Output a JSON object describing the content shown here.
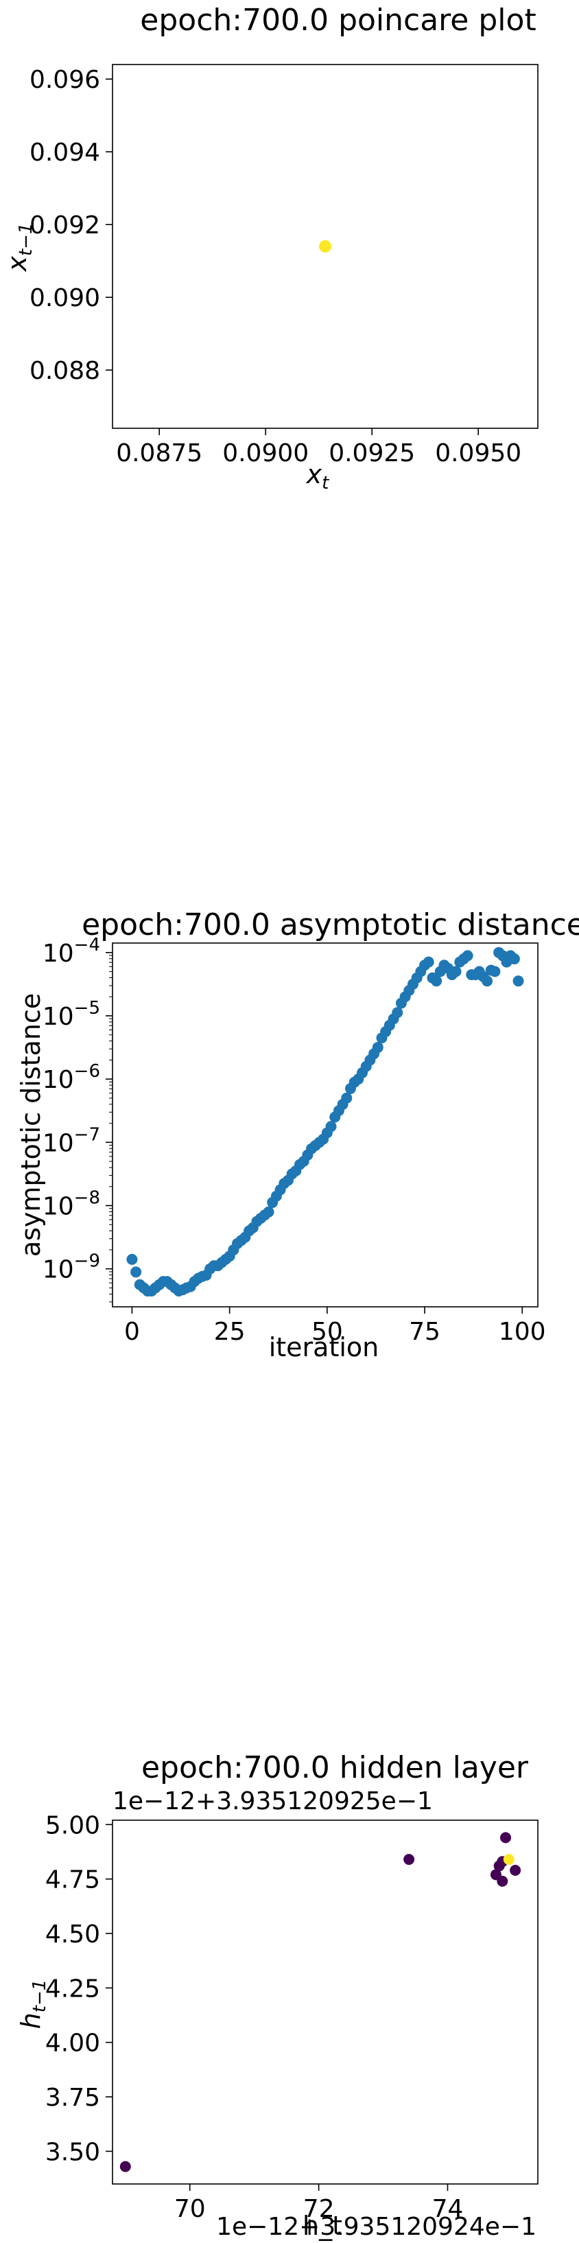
{
  "chart_data": [
    {
      "type": "scatter",
      "title": "epoch:700.0 poincare plot",
      "xlabel": "x",
      "xlabel_sub": "t",
      "ylabel": "x",
      "ylabel_sub": "t−1",
      "xlim": [
        0.0864,
        0.0964
      ],
      "ylim": [
        0.0864,
        0.0964
      ],
      "xticks": [
        0.0875,
        0.09,
        0.0925,
        0.095
      ],
      "xtick_labels": [
        "0.0875",
        "0.0900",
        "0.0925",
        "0.0950"
      ],
      "yticks": [
        0.088,
        0.09,
        0.092,
        0.094,
        0.096
      ],
      "ytick_labels": [
        "0.088",
        "0.090",
        "0.092",
        "0.094",
        "0.096"
      ],
      "points": [
        {
          "x": 0.0914,
          "y": 0.0914
        }
      ],
      "point_color": "#fde725"
    },
    {
      "type": "scatter",
      "title": "epoch:700.0 asymptotic distance",
      "xlabel": "iteration",
      "ylabel": "asymptotic distance",
      "yscale": "log",
      "xlim": [
        -5,
        104
      ],
      "ylim_log10": [
        -9.6,
        -3.85
      ],
      "xticks": [
        0,
        25,
        50,
        75,
        100
      ],
      "xtick_labels": [
        "0",
        "25",
        "50",
        "75",
        "100"
      ],
      "yticks_log10": [
        -9,
        -8,
        -7,
        -6,
        -5,
        -4
      ],
      "ytick_labels": [
        {
          "base": "10",
          "exp": "−9"
        },
        {
          "base": "10",
          "exp": "−8"
        },
        {
          "base": "10",
          "exp": "−7"
        },
        {
          "base": "10",
          "exp": "−6"
        },
        {
          "base": "10",
          "exp": "−5"
        },
        {
          "base": "10",
          "exp": "−4"
        }
      ],
      "point_color": "#1f77b4",
      "x": [
        0,
        1,
        2,
        3,
        4,
        5,
        6,
        7,
        8,
        9,
        10,
        11,
        12,
        13,
        14,
        15,
        16,
        17,
        18,
        19,
        20,
        21,
        22,
        23,
        24,
        25,
        26,
        27,
        28,
        29,
        30,
        31,
        32,
        33,
        34,
        35,
        36,
        37,
        38,
        39,
        40,
        41,
        42,
        43,
        44,
        45,
        46,
        47,
        48,
        49,
        50,
        51,
        52,
        53,
        54,
        55,
        56,
        57,
        58,
        59,
        60,
        61,
        62,
        63,
        64,
        65,
        66,
        67,
        68,
        69,
        70,
        71,
        72,
        73,
        74,
        75,
        76,
        77,
        78,
        79,
        80,
        81,
        82,
        83,
        84,
        85,
        86,
        87,
        88,
        89,
        90,
        91,
        92,
        93,
        94,
        95,
        96,
        97,
        98,
        99
      ],
      "y_log10": [
        -8.85,
        -9.05,
        -9.25,
        -9.3,
        -9.35,
        -9.35,
        -9.3,
        -9.25,
        -9.2,
        -9.2,
        -9.25,
        -9.3,
        -9.35,
        -9.33,
        -9.3,
        -9.28,
        -9.2,
        -9.15,
        -9.12,
        -9.1,
        -9.0,
        -8.95,
        -8.95,
        -8.9,
        -8.85,
        -8.8,
        -8.7,
        -8.6,
        -8.55,
        -8.5,
        -8.4,
        -8.35,
        -8.25,
        -8.2,
        -8.15,
        -8.1,
        -7.95,
        -7.85,
        -7.75,
        -7.65,
        -7.6,
        -7.5,
        -7.45,
        -7.35,
        -7.3,
        -7.2,
        -7.1,
        -7.05,
        -7.0,
        -6.95,
        -6.85,
        -6.75,
        -6.6,
        -6.5,
        -6.4,
        -6.3,
        -6.15,
        -6.05,
        -6.0,
        -5.9,
        -5.8,
        -5.7,
        -5.6,
        -5.5,
        -5.35,
        -5.25,
        -5.15,
        -5.05,
        -4.95,
        -4.8,
        -4.7,
        -4.6,
        -4.5,
        -4.4,
        -4.3,
        -4.2,
        -4.15,
        -4.4,
        -4.45,
        -4.3,
        -4.2,
        -4.25,
        -4.35,
        -4.3,
        -4.15,
        -4.1,
        -4.05,
        -4.35,
        -4.35,
        -4.3,
        -4.38,
        -4.45,
        -4.28,
        -4.3,
        -4.0,
        -4.05,
        -4.15,
        -4.05,
        -4.1,
        -4.45
      ]
    },
    {
      "type": "scatter",
      "title": "epoch:700.0 hidden layer",
      "ylabel": "h",
      "ylabel_sub": "t−1",
      "x_offset_label": "1e−12+3.935120924e−1",
      "y_offset_label": "1e−12+3.935120925e−1",
      "x_overlap_text": "h_t",
      "xlim": [
        68.8,
        75.4
      ],
      "ylim": [
        3.35,
        5.02
      ],
      "xticks": [
        70,
        72,
        74
      ],
      "xtick_labels": [
        "70",
        "72",
        "74"
      ],
      "yticks": [
        3.5,
        3.75,
        4.0,
        4.25,
        4.5,
        4.75,
        5.0
      ],
      "ytick_labels": [
        "3.50",
        "3.75",
        "4.00",
        "4.25",
        "4.50",
        "4.75",
        "5.00"
      ],
      "points": [
        {
          "x": 69.0,
          "y": 3.43,
          "color": "#440154"
        },
        {
          "x": 73.4,
          "y": 4.84,
          "color": "#440154"
        },
        {
          "x": 74.9,
          "y": 4.94,
          "color": "#440154"
        },
        {
          "x": 74.85,
          "y": 4.83,
          "color": "#440154"
        },
        {
          "x": 74.8,
          "y": 4.81,
          "color": "#440154"
        },
        {
          "x": 74.75,
          "y": 4.77,
          "color": "#440154"
        },
        {
          "x": 74.85,
          "y": 4.74,
          "color": "#440154"
        },
        {
          "x": 75.05,
          "y": 4.79,
          "color": "#440154"
        },
        {
          "x": 74.95,
          "y": 4.84,
          "color": "#fde725"
        }
      ]
    }
  ]
}
